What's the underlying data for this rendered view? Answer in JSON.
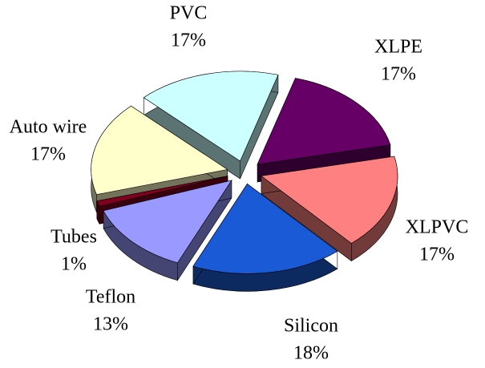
{
  "chart_data": {
    "type": "pie",
    "categories": [
      "PVC",
      "XLPE",
      "XLPVC",
      "Silicon",
      "Teflon",
      "Tubes",
      "Auto wire"
    ],
    "values": [
      17,
      17,
      17,
      18,
      13,
      1,
      17
    ],
    "value_labels": [
      "17%",
      "17%",
      "17%",
      "18%",
      "13%",
      "1%",
      "17%"
    ],
    "colors": [
      "#ccffff",
      "#660066",
      "#ff8080",
      "#1a5ad6",
      "#9999ff",
      "#800020",
      "#ffffcc"
    ]
  }
}
